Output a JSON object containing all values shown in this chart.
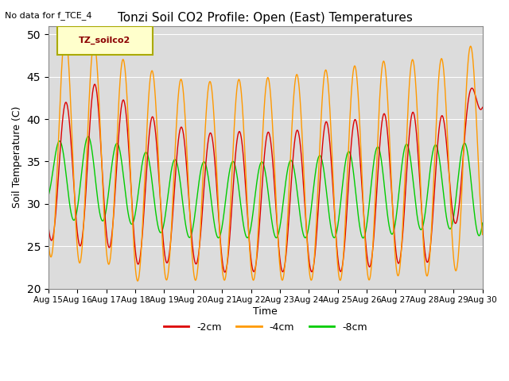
{
  "title": "Tonzi Soil CO2 Profile: Open (East) Temperatures",
  "subtitle": "No data for f_TCE_4",
  "ylabel": "Soil Temperature (C)",
  "xlabel": "Time",
  "ylim": [
    20,
    51
  ],
  "yticks": [
    20,
    25,
    30,
    35,
    40,
    45,
    50
  ],
  "legend_label": "TZ_soilco2",
  "series_labels": [
    "-2cm",
    "-4cm",
    "-8cm"
  ],
  "series_colors": [
    "#dd0000",
    "#ff9900",
    "#00cc00"
  ],
  "background_color": "#dcdcdc",
  "xtick_labels": [
    "Aug 15",
    "Aug 16",
    "Aug 17",
    "Aug 18",
    "Aug 19",
    "Aug 20",
    "Aug 21",
    "Aug 22",
    "Aug 23",
    "Aug 24",
    "Aug 25",
    "Aug 26",
    "Aug 27",
    "Aug 28",
    "Aug 29",
    "Aug 30"
  ],
  "num_days": 15,
  "start_day": 15
}
